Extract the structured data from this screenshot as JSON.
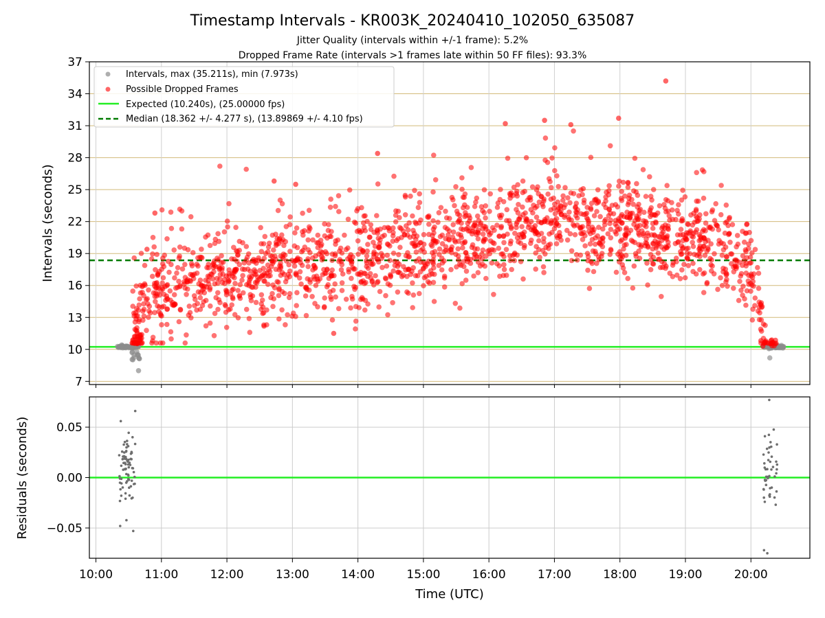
{
  "chart_data": [
    {
      "type": "scatter",
      "title": "Timestamp Intervals - KR003K_20240410_102050_635087",
      "subtitle_lines": [
        "Jitter Quality (intervals within +/-1 frame): 5.2%",
        "Dropped Frame Rate (intervals >1 frames late within 50 FF files): 93.3%"
      ],
      "xlabel": "",
      "ylabel": "Intervals (seconds)",
      "x_unit": "hours UTC",
      "xlim": [
        9.9,
        20.9
      ],
      "ylim": [
        6.7,
        37
      ],
      "yticks": [
        7,
        10,
        13,
        16,
        19,
        22,
        25,
        28,
        31,
        34,
        37
      ],
      "ytick_labels": [
        "7",
        "10",
        "13",
        "16",
        "19",
        "22",
        "25",
        "28",
        "31",
        "34",
        "37"
      ],
      "grid": "horizontal",
      "legend_position": "upper-left",
      "legend": [
        "Intervals, max (35.211s), min (7.973s)",
        "Possible Dropped Frames",
        "Expected (10.240s), (25.00000 fps)",
        "Median (18.362 +/- 4.277 s), (13.89869 +/- 4.10 fps)"
      ],
      "series": [
        {
          "name": "Intervals, max (35.211s), min (7.973s)",
          "kind": "scatter",
          "color": "#8c8c8c",
          "note": "grey points clustered near 10.2 s at 10:20-10:40 and 20:15-20:30"
        },
        {
          "name": "Possible Dropped Frames",
          "kind": "scatter",
          "color": "#ff0000",
          "note": "red points rising from ~11 s at 10:35 to 16-24 s midday, peak ~35.2 s near 18:40, falling back near 20:15"
        },
        {
          "name": "Expected (10.240s), (25.00000 fps)",
          "kind": "hline",
          "y": 10.24,
          "color": "#22ee22"
        },
        {
          "name": "Median (18.362 +/- 4.277 s), (13.89869 +/- 4.10 fps)",
          "kind": "hline",
          "y": 18.362,
          "color": "#007a00",
          "dashed": true
        }
      ],
      "trend_anchors": [
        {
          "x": 10.55,
          "y": 11.0
        },
        {
          "x": 10.75,
          "y": 14.2
        },
        {
          "x": 11.0,
          "y": 15.8
        },
        {
          "x": 12.0,
          "y": 16.6
        },
        {
          "x": 13.0,
          "y": 17.5
        },
        {
          "x": 14.0,
          "y": 18.4
        },
        {
          "x": 15.0,
          "y": 19.6
        },
        {
          "x": 16.0,
          "y": 20.6
        },
        {
          "x": 16.5,
          "y": 21.6
        },
        {
          "x": 17.0,
          "y": 22.0
        },
        {
          "x": 18.0,
          "y": 21.6
        },
        {
          "x": 19.0,
          "y": 20.0
        },
        {
          "x": 19.8,
          "y": 19.0
        },
        {
          "x": 20.05,
          "y": 16.0
        },
        {
          "x": 20.2,
          "y": 11.5
        }
      ],
      "highlight_points": [
        {
          "x": 18.7,
          "y": 35.2
        },
        {
          "x": 17.98,
          "y": 31.7
        },
        {
          "x": 16.85,
          "y": 31.5
        },
        {
          "x": 16.25,
          "y": 31.2
        },
        {
          "x": 17.25,
          "y": 31.1
        },
        {
          "x": 10.65,
          "y": 8.0
        },
        {
          "x": 13.63,
          "y": 11.5
        },
        {
          "x": 10.78,
          "y": 19.4
        },
        {
          "x": 10.9,
          "y": 22.8
        },
        {
          "x": 12.72,
          "y": 25.8
        },
        {
          "x": 13.05,
          "y": 25.5
        },
        {
          "x": 14.3,
          "y": 28.4
        }
      ]
    },
    {
      "type": "scatter",
      "xlabel": "Time (UTC)",
      "ylabel": "Residuals (seconds)",
      "xlim": [
        9.9,
        20.9
      ],
      "ylim": [
        -0.08,
        0.08
      ],
      "yticks": [
        -0.05,
        0.0,
        0.05
      ],
      "ytick_labels": [
        "−0.05",
        "0.00",
        "0.05"
      ],
      "xticks": [
        10,
        11,
        12,
        13,
        14,
        15,
        16,
        17,
        18,
        19,
        20
      ],
      "xtick_labels": [
        "10:00",
        "11:00",
        "12:00",
        "13:00",
        "14:00",
        "15:00",
        "16:00",
        "17:00",
        "18:00",
        "19:00",
        "20:00"
      ],
      "grid": "both",
      "series": [
        {
          "name": "",
          "kind": "scatter",
          "color": "#6e6e6e",
          "note": "residuals at 10:20-10:40 and 20:15-20:30"
        },
        {
          "name": "",
          "kind": "hline",
          "y": 0.0,
          "color": "#22ee22"
        }
      ],
      "residual_extremes": [
        {
          "x": 10.6,
          "y": 0.066
        },
        {
          "x": 10.38,
          "y": 0.056
        },
        {
          "x": 10.37,
          "y": -0.048
        },
        {
          "x": 10.57,
          "y": -0.053
        },
        {
          "x": 20.28,
          "y": 0.077
        },
        {
          "x": 20.2,
          "y": -0.072
        },
        {
          "x": 20.25,
          "y": -0.075
        }
      ]
    }
  ]
}
